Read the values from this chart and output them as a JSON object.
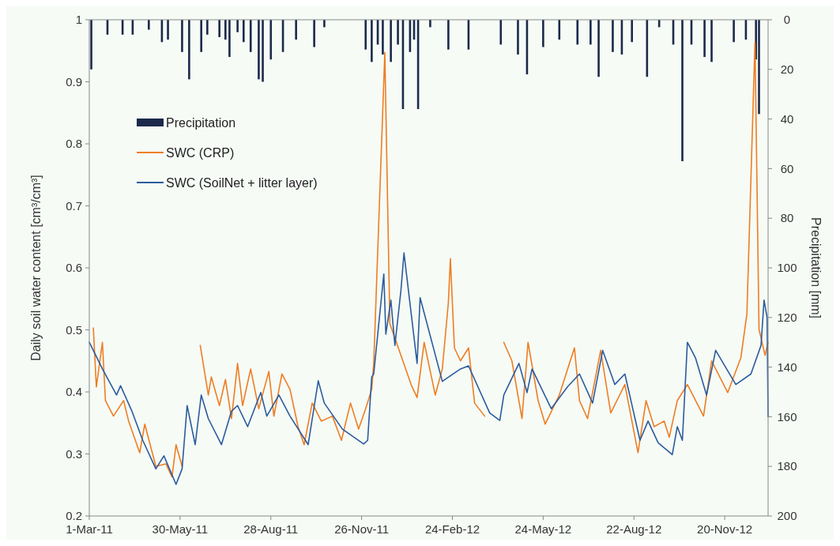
{
  "chart_data": {
    "type": "line",
    "xlabel": null,
    "ylabel": "Daily soil water content [cm³/cm³]",
    "y2label": "Precipitation [mm]",
    "xlim": [
      "2011-03-01",
      "2013-01-02"
    ],
    "xticks": [
      {
        "value": "2011-03-01",
        "label": "1-Mar-11"
      },
      {
        "value": "2011-05-30",
        "label": "30-May-11"
      },
      {
        "value": "2011-08-28",
        "label": "28-Aug-11"
      },
      {
        "value": "2011-11-26",
        "label": "26-Nov-11"
      },
      {
        "value": "2012-02-24",
        "label": "24-Feb-12"
      },
      {
        "value": "2012-05-24",
        "label": "24-May-12"
      },
      {
        "value": "2012-08-22",
        "label": "22-Aug-12"
      },
      {
        "value": "2012-11-20",
        "label": "20-Nov-12"
      }
    ],
    "ylim": [
      0.2,
      1
    ],
    "yticks": [
      0.2,
      0.3,
      0.4,
      0.5,
      0.6,
      0.7,
      0.8,
      0.9,
      1
    ],
    "y2lim": [
      200,
      0
    ],
    "y2ticks": [
      0,
      20,
      40,
      60,
      80,
      100,
      120,
      140,
      160,
      180,
      200
    ],
    "legend": "top left",
    "series": [
      {
        "name": "Precipitation",
        "type": "bar",
        "axis": "y2",
        "color": "#1b2a4a",
        "x": [
          "2011-03-03",
          "2011-03-19",
          "2011-04-03",
          "2011-04-13",
          "2011-04-29",
          "2011-05-12",
          "2011-05-18",
          "2011-06-01",
          "2011-06-08",
          "2011-06-20",
          "2011-06-26",
          "2011-07-08",
          "2011-07-14",
          "2011-07-18",
          "2011-07-26",
          "2011-08-01",
          "2011-08-08",
          "2011-08-16",
          "2011-08-20",
          "2011-08-28",
          "2011-09-09",
          "2011-09-22",
          "2011-10-10",
          "2011-10-20",
          "2011-11-30",
          "2011-12-06",
          "2011-12-12",
          "2011-12-17",
          "2011-12-25",
          "2012-01-01",
          "2012-01-06",
          "2012-01-13",
          "2012-01-17",
          "2012-01-21",
          "2012-02-02",
          "2012-02-20",
          "2012-03-11",
          "2012-04-12",
          "2012-04-29",
          "2012-05-08",
          "2012-05-24",
          "2012-06-09",
          "2012-06-27",
          "2012-07-10",
          "2012-07-18",
          "2012-08-01",
          "2012-08-10",
          "2012-08-20",
          "2012-09-04",
          "2012-09-16",
          "2012-09-30",
          "2012-10-09",
          "2012-10-18",
          "2012-10-31",
          "2012-11-07",
          "2012-11-29",
          "2012-12-11",
          "2012-12-21",
          "2012-12-24"
        ],
        "values": [
          20,
          6,
          6,
          6,
          4,
          9,
          8,
          13,
          24,
          13,
          6,
          7,
          8,
          15,
          5,
          9,
          13,
          24,
          25,
          16,
          13,
          8,
          11,
          3,
          12,
          17,
          10,
          14,
          17,
          10,
          36,
          13,
          8,
          36,
          3,
          12,
          12,
          10,
          14,
          22,
          11,
          8,
          10,
          10,
          23,
          13,
          14,
          9,
          23,
          3,
          10,
          57,
          10,
          15,
          17,
          9,
          8,
          16,
          38
        ]
      },
      {
        "name": "SWC (CRP)",
        "color": "#ef7d22",
        "x": [
          "2011-03-05",
          "2011-03-08",
          "2011-03-14",
          "2011-03-17",
          "2011-03-25",
          "2011-04-04",
          "2011-04-09",
          "2011-04-20",
          "2011-04-25",
          "2011-05-06",
          "2011-05-16",
          "2011-05-22",
          "2011-05-26",
          "2011-06-01",
          "2011-06-08",
          "2011-06-19",
          "2011-06-27",
          "2011-06-30",
          "2011-07-08",
          "2011-07-14",
          "2011-07-20",
          "2011-07-26",
          "2011-07-31",
          "2011-08-08",
          "2011-08-16",
          "2011-08-26",
          "2011-08-31",
          "2011-09-08",
          "2011-09-16",
          "2011-09-24",
          "2011-09-30",
          "2011-10-08",
          "2011-10-17",
          "2011-10-28",
          "2011-11-06",
          "2011-11-15",
          "2011-11-23",
          "2011-11-30",
          "2011-12-06",
          "2011-12-08",
          "2011-12-19",
          "2011-12-24",
          "2012-01-04",
          "2012-01-14",
          "2012-01-20",
          "2012-01-27",
          "2012-02-07",
          "2012-02-14",
          "2012-02-20",
          "2012-02-22",
          "2012-02-26",
          "2012-03-03",
          "2012-03-11",
          "2012-03-17",
          "2012-03-27",
          "2012-04-05",
          "2012-04-15",
          "2012-04-23",
          "2012-05-03",
          "2012-05-09",
          "2012-05-19",
          "2012-05-26",
          "2012-06-09",
          "2012-06-24",
          "2012-06-29",
          "2012-07-07",
          "2012-07-20",
          "2012-07-30",
          "2012-08-13",
          "2012-08-26",
          "2012-09-03",
          "2012-09-11",
          "2012-09-21",
          "2012-09-26",
          "2012-10-04",
          "2012-10-14",
          "2012-10-30",
          "2012-11-07",
          "2012-11-23",
          "2012-12-06",
          "2012-12-12",
          "2012-12-20",
          "2012-12-24",
          "2012-12-30",
          "2013-01-02"
        ],
        "values": [
          0.503,
          0.408,
          0.48,
          0.386,
          0.361,
          0.386,
          0.353,
          0.302,
          0.348,
          0.28,
          0.284,
          0.263,
          0.315,
          0.28,
          null,
          0.475,
          0.395,
          0.424,
          0.378,
          0.42,
          0.357,
          0.446,
          0.378,
          0.437,
          0.373,
          0.433,
          0.361,
          0.429,
          0.404,
          0.344,
          0.315,
          0.382,
          0.353,
          0.361,
          0.322,
          0.382,
          0.34,
          0.373,
          0.404,
          0.446,
          0.947,
          0.51,
          0.459,
          0.412,
          0.391,
          0.48,
          0.395,
          0.437,
          0.544,
          0.615,
          0.471,
          0.45,
          0.471,
          0.382,
          0.361,
          null,
          0.48,
          0.45,
          0.357,
          0.48,
          0.386,
          0.348,
          0.395,
          0.471,
          0.386,
          0.357,
          0.467,
          0.366,
          0.412,
          0.302,
          0.386,
          0.344,
          0.353,
          0.327,
          0.386,
          0.412,
          0.361,
          0.45,
          0.399,
          0.455,
          0.526,
          0.964,
          0.501,
          0.459,
          0.48
        ]
      },
      {
        "name": "SWC (SoilNet + litter layer)",
        "color": "#2c5b9e",
        "x": [
          "2011-03-01",
          "2011-03-14",
          "2011-03-28",
          "2011-04-01",
          "2011-04-12",
          "2011-04-23",
          "2011-05-06",
          "2011-05-14",
          "2011-05-26",
          "2011-06-01",
          "2011-06-06",
          "2011-06-14",
          "2011-06-20",
          "2011-06-27",
          "2011-07-10",
          "2011-07-20",
          "2011-07-26",
          "2011-08-05",
          "2011-08-18",
          "2011-08-24",
          "2011-09-05",
          "2011-09-16",
          "2011-10-04",
          "2011-10-14",
          "2011-10-20",
          "2011-11-07",
          "2011-11-28",
          "2011-12-02",
          "2011-12-06",
          "2011-12-08",
          "2011-12-18",
          "2011-12-20",
          "2011-12-25",
          "2011-12-29",
          "2012-01-04",
          "2012-01-07",
          "2012-01-20",
          "2012-01-23",
          "2012-02-14",
          "2012-03-03",
          "2012-03-11",
          "2012-04-01",
          "2012-04-11",
          "2012-04-15",
          "2012-04-30",
          "2012-05-08",
          "2012-05-13",
          "2012-06-01",
          "2012-06-17",
          "2012-06-29",
          "2012-07-12",
          "2012-07-22",
          "2012-08-03",
          "2012-08-13",
          "2012-08-28",
          "2012-09-05",
          "2012-09-15",
          "2012-09-29",
          "2012-10-04",
          "2012-10-09",
          "2012-10-14",
          "2012-10-22",
          "2012-11-02",
          "2012-11-11",
          "2012-12-01",
          "2012-12-16",
          "2012-12-26",
          "2012-12-29",
          "2013-01-01",
          "2013-01-02"
        ],
        "values": [
          0.48,
          0.437,
          0.395,
          0.41,
          0.37,
          0.322,
          0.276,
          0.297,
          0.251,
          0.276,
          0.378,
          0.315,
          0.395,
          0.357,
          0.315,
          0.369,
          0.378,
          0.344,
          0.399,
          0.361,
          0.395,
          0.361,
          0.315,
          0.418,
          0.382,
          0.34,
          0.316,
          0.322,
          0.424,
          0.429,
          0.59,
          0.493,
          0.548,
          0.475,
          0.564,
          0.624,
          0.446,
          0.552,
          0.417,
          0.437,
          0.442,
          0.366,
          0.354,
          0.395,
          0.446,
          0.399,
          0.437,
          0.373,
          0.408,
          0.429,
          0.382,
          0.467,
          0.412,
          0.429,
          0.322,
          0.353,
          0.318,
          0.299,
          0.344,
          0.322,
          0.48,
          0.455,
          0.395,
          0.467,
          0.412,
          0.429,
          0.475,
          0.548,
          0.52,
          0.36
        ]
      }
    ]
  }
}
